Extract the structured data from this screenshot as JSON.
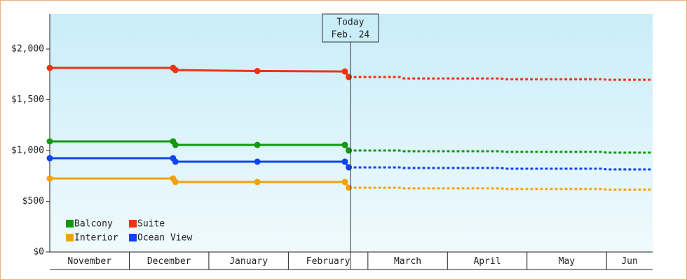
{
  "chart_data": {
    "type": "line",
    "categories": [
      "November",
      "December",
      "January",
      "February",
      "March",
      "April",
      "May",
      "Jun"
    ],
    "xlim": [
      0,
      7.58
    ],
    "ylim": [
      0,
      2345
    ],
    "yticks": [
      {
        "value": 0,
        "label": "$0"
      },
      {
        "value": 500,
        "label": "$500"
      },
      {
        "value": 1000,
        "label": "$1,000"
      },
      {
        "value": 1500,
        "label": "$1,500"
      },
      {
        "value": 2000,
        "label": "$2,000"
      }
    ],
    "x": [
      0,
      1.55,
      1.58,
      2.61,
      3.71,
      3.76
    ],
    "forecast_x": [
      3.76,
      4.4,
      4.45,
      5.67,
      5.72,
      6.95,
      7.0,
      7.58
    ],
    "series": [
      {
        "name": "Balcony",
        "color": "#119911",
        "values": [
          1090,
          1090,
          1055,
          1055,
          1055,
          1000
        ],
        "forecast": [
          1000,
          1000,
          993,
          993,
          986,
          986,
          979,
          979
        ]
      },
      {
        "name": "Suite",
        "color": "#ee3311",
        "values": [
          1814,
          1814,
          1793,
          1783,
          1779,
          1724
        ],
        "forecast": [
          1724,
          1724,
          1710,
          1710,
          1703,
          1703,
          1697,
          1697
        ]
      },
      {
        "name": "Interior",
        "color": "#f2a20d",
        "values": [
          724,
          724,
          690,
          690,
          690,
          634
        ],
        "forecast": [
          634,
          634,
          628,
          628,
          621,
          621,
          614,
          614
        ]
      },
      {
        "name": "Ocean View",
        "color": "#1144ee",
        "values": [
          924,
          924,
          890,
          890,
          890,
          834
        ],
        "forecast": [
          834,
          834,
          828,
          828,
          821,
          821,
          814,
          814
        ]
      }
    ],
    "annotation": {
      "x": 3.78,
      "lines": [
        "Today",
        "Feb. 24"
      ]
    }
  }
}
